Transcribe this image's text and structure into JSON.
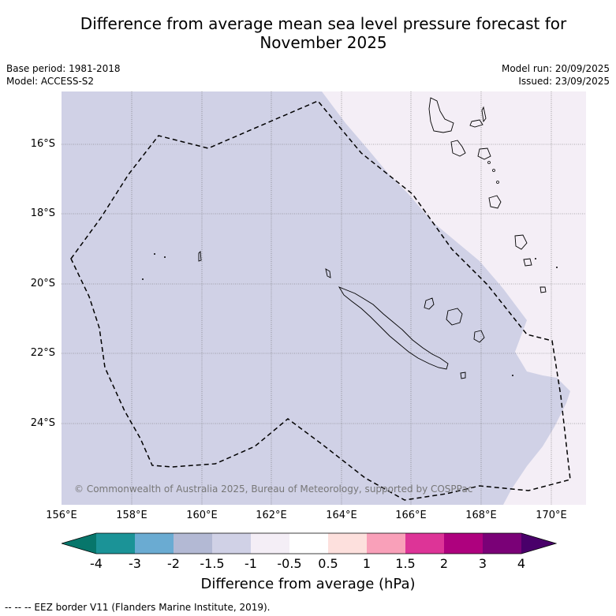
{
  "title_line1": "Difference from average mean sea level pressure forecast for",
  "title_line2": "November 2025",
  "meta": {
    "base_period": "Base period: 1981-2018",
    "model": "Model: ACCESS-S2",
    "model_run": "Model run: 20/09/2025",
    "issued": "Issued: 23/09/2025"
  },
  "copyright": "© Commonwealth of Australia 2025, Bureau of Meteorology, supported by COSPPac",
  "lat_labels": [
    "16°S",
    "18°S",
    "20°S",
    "22°S",
    "24°S"
  ],
  "lon_labels": [
    "156°E",
    "158°E",
    "160°E",
    "162°E",
    "164°E",
    "166°E",
    "168°E",
    "170°E"
  ],
  "colorbar": {
    "ticks": [
      "-4",
      "-3",
      "-2",
      "-1.5",
      "-1",
      "-0.5",
      "0.5",
      "1",
      "1.5",
      "2",
      "3",
      "4"
    ],
    "colors": [
      "#07766b",
      "#1b9397",
      "#6aabd2",
      "#b3b9d4",
      "#d0d1e6",
      "#f4eef6",
      "#ffffff",
      "#fde0dd",
      "#f9a0b9",
      "#dd3497",
      "#ae017e",
      "#7a0177",
      "#49006a"
    ],
    "label": "Difference from average (hPa)"
  },
  "footnote": "--  --  -- EEZ border V11 (Flanders Marine Institute, 2019).",
  "map_colors": {
    "anomaly_minus_1_to_minus_1_5": "#d0d1e6",
    "anomaly_minus_0_5_to_minus_1": "#f4eef6"
  }
}
